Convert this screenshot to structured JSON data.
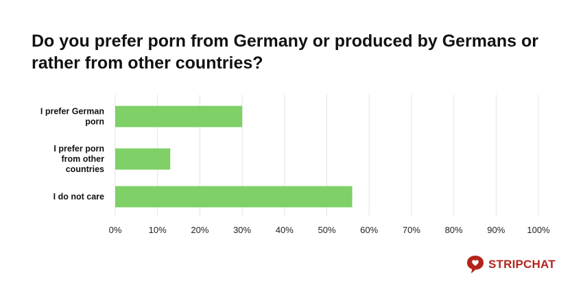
{
  "chart_data": {
    "type": "bar",
    "orientation": "horizontal",
    "title": "Do you prefer porn from Germany or produced by Germans or rather from other countries?",
    "categories": [
      [
        "I prefer German",
        "porn"
      ],
      [
        "I prefer porn",
        "from other",
        "countries"
      ],
      [
        "I do not care"
      ]
    ],
    "values": [
      30,
      13,
      56
    ],
    "unit": "%",
    "xlim": [
      0,
      100
    ],
    "ticks": [
      "0%",
      "10%",
      "20%",
      "30%",
      "40%",
      "50%",
      "60%",
      "70%",
      "80%",
      "90%",
      "100%"
    ],
    "grid": "vertical",
    "bar_color": "#7ed067",
    "grid_color": "#e3e3e3"
  },
  "brand": {
    "name": "STRIPCHAT",
    "color": "#b3241c"
  }
}
